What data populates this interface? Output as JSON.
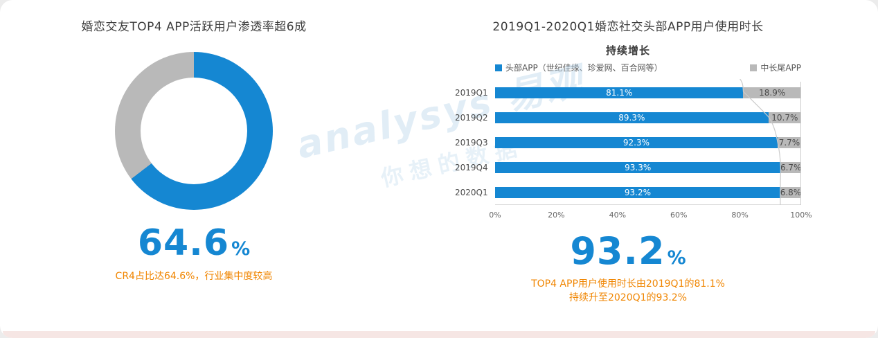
{
  "left": {
    "title": "婚恋交友TOP4 APP活跃用户渗透率超6成",
    "big_value": "64.6",
    "big_unit": "%",
    "caption": "CR4占比达64.6%，行业集中度较高"
  },
  "right": {
    "title": "2019Q1-2020Q1婚恋社交头部APP用户使用时长",
    "annotation": "持续增长",
    "big_value": "93.2",
    "big_unit": "%",
    "caption_line1": "TOP4 APP用户使用时长由2019Q1的81.1%",
    "caption_line2": "持续升至2020Q1的93.2%"
  },
  "watermark": {
    "line1": "analysys 易观",
    "line2": "你想的数据"
  },
  "colors": {
    "blue": "#1587d2",
    "gray": "#b9b9b9",
    "orange": "#f08500"
  },
  "chart_data": [
    {
      "type": "pie",
      "subtype": "donut",
      "title": "婚恋交友TOP4 APP活跃用户渗透率超6成",
      "labels": [
        "CR4",
        ""
      ],
      "values": [
        64.6,
        35.4
      ],
      "colors": [
        "#1587d2",
        "#b9b9b9"
      ],
      "center_label": "64.6%"
    },
    {
      "type": "bar",
      "orientation": "horizontal",
      "stacked": true,
      "title": "2019Q1-2020Q1婚恋社交头部APP用户使用时长",
      "categories": [
        "2019Q1",
        "2019Q2",
        "2019Q3",
        "2019Q4",
        "2020Q1"
      ],
      "series": [
        {
          "name": "头部APP（世纪佳缘、珍爱网、百合网等）",
          "color": "#1587d2",
          "values": [
            81.1,
            89.3,
            92.3,
            93.3,
            93.2
          ]
        },
        {
          "name": "中长尾APP",
          "color": "#b9b9b9",
          "values": [
            18.9,
            10.7,
            7.7,
            6.7,
            6.8
          ]
        }
      ],
      "xlim": [
        0,
        100
      ],
      "x_ticks": [
        "0%",
        "20%",
        "40%",
        "60%",
        "80%",
        "100%"
      ],
      "legend_position": "top",
      "grid": false
    }
  ]
}
